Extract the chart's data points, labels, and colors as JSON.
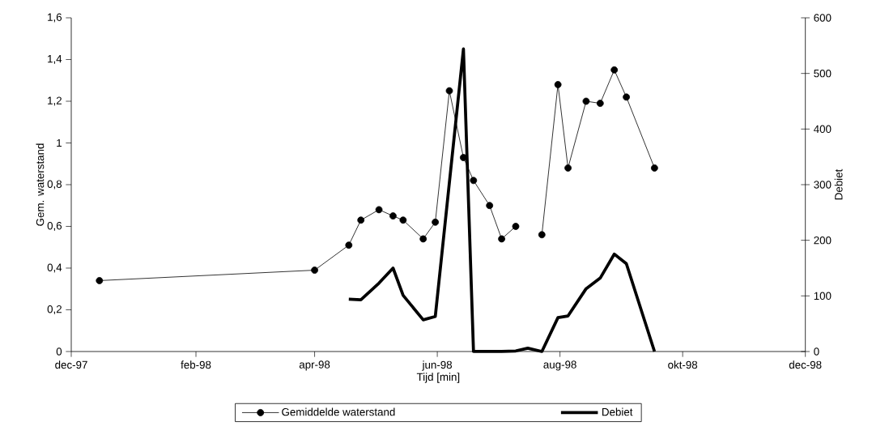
{
  "chart_data": {
    "type": "line",
    "xlabel": "Tijd [min]",
    "ylabel": "Gem. waterstand",
    "y2label": "Debiet",
    "xlim": [
      "1997-12-01",
      "1998-12-01"
    ],
    "xticks": [
      {
        "value": "1997-12-01",
        "label": "dec-97"
      },
      {
        "value": "1998-02-01",
        "label": "feb-98"
      },
      {
        "value": "1998-04-01",
        "label": "apr-98"
      },
      {
        "value": "1998-06-01",
        "label": "jun-98"
      },
      {
        "value": "1998-08-01",
        "label": "aug-98"
      },
      {
        "value": "1998-10-01",
        "label": "okt-98"
      },
      {
        "value": "1998-12-01",
        "label": "dec-98"
      }
    ],
    "ylim": [
      0,
      1.6
    ],
    "yticks": [
      0,
      {
        "value": 0.2,
        "label": "0,2"
      },
      {
        "value": 0.4,
        "label": "0,4"
      },
      {
        "value": 0.6,
        "label": "0,6"
      },
      {
        "value": 0.8,
        "label": "0,8"
      },
      1,
      {
        "value": 1.2,
        "label": "1,2"
      },
      {
        "value": 1.4,
        "label": "1,4"
      },
      {
        "value": 1.6,
        "label": "1,6"
      }
    ],
    "y2lim": [
      0,
      600
    ],
    "y2ticks": [
      0,
      100,
      200,
      300,
      400,
      500,
      600
    ],
    "grid": false,
    "legend": "bottom",
    "series": [
      {
        "name": "Gemiddelde waterstand",
        "color": "#000000",
        "marker": "circle",
        "axis": "y",
        "x": [
          "1997-12-15",
          "1998-04-01",
          "1998-04-18",
          "1998-04-24",
          "1998-05-03",
          "1998-05-10",
          "1998-05-15",
          "1998-05-25",
          "1998-05-31",
          "1998-06-07",
          "1998-06-14",
          "1998-06-19",
          "1998-06-27",
          "1998-07-03",
          "1998-07-10",
          "1998-07-16",
          "1998-07-23",
          "1998-07-31",
          "1998-08-05",
          "1998-08-14",
          "1998-08-21",
          "1998-08-28",
          "1998-09-03",
          "1998-09-17"
        ],
        "values": [
          0.34,
          0.39,
          0.51,
          0.63,
          0.68,
          0.65,
          0.63,
          0.54,
          0.62,
          1.25,
          0.93,
          0.82,
          0.7,
          0.54,
          0.6,
          null,
          0.56,
          1.28,
          0.88,
          1.2,
          1.19,
          1.35,
          1.22,
          0.88
        ]
      },
      {
        "name": "Debiet",
        "color": "#000000",
        "marker": "none",
        "axis": "y2",
        "x": [
          "1998-04-18",
          "1998-04-24",
          "1998-05-03",
          "1998-05-10",
          "1998-05-15",
          "1998-05-25",
          "1998-05-31",
          "1998-06-14",
          "1998-06-19",
          "1998-07-03",
          "1998-07-10",
          "1998-07-16",
          "1998-07-23",
          "1998-07-31",
          "1998-08-05",
          "1998-08-14",
          "1998-08-21",
          "1998-08-28",
          "1998-09-03",
          "1998-09-17"
        ],
        "values": [
          94,
          93,
          123,
          150,
          101,
          57,
          63,
          544,
          0,
          0,
          1,
          6,
          0,
          61,
          64,
          113,
          132,
          175,
          158,
          0
        ]
      }
    ]
  }
}
